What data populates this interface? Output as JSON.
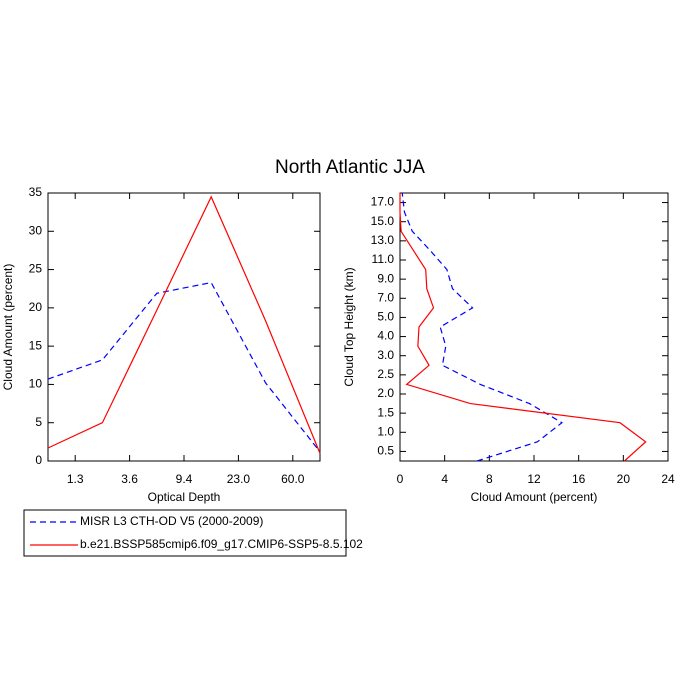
{
  "title": "North Atlantic JJA",
  "chart_data": [
    {
      "type": "line",
      "orientation": "vertical",
      "xlabel": "Optical Depth",
      "ylabel": "Cloud Amount (percent)",
      "x": [
        0,
        1,
        2,
        3,
        4,
        5
      ],
      "xlim": [
        0,
        5
      ],
      "xticks": [
        {
          "value": 0.5,
          "label": "1.3"
        },
        {
          "value": 1.5,
          "label": "3.6"
        },
        {
          "value": 2.5,
          "label": "9.4"
        },
        {
          "value": 3.5,
          "label": "23.0"
        },
        {
          "value": 4.5,
          "label": "60.0"
        }
      ],
      "ylim": [
        0,
        35
      ],
      "yticks": [
        0,
        5,
        10,
        15,
        20,
        25,
        30,
        35
      ],
      "series": [
        {
          "name": "MISR L3 CTH-OD V5 (2000-2009)",
          "color": "#0000ff",
          "dashed": true,
          "values": [
            10.7,
            13.2,
            21.9,
            23.3,
            10.2,
            1.2
          ]
        },
        {
          "name": "b.e21.BSSP585cmip6.f09_g17.CMIP6-SSP5-8.5.102",
          "color": "#ff0000",
          "dashed": false,
          "values": [
            1.7,
            5.0,
            19.7,
            34.5,
            18.3,
            1.0
          ]
        }
      ]
    },
    {
      "type": "line",
      "orientation": "horizontal",
      "xlabel": "Cloud Amount (percent)",
      "ylabel": "Cloud Top Height (km)",
      "xlim": [
        0,
        24
      ],
      "xticks": [
        0,
        4,
        8,
        12,
        16,
        20,
        24
      ],
      "y": [
        0,
        1,
        2,
        3,
        4,
        5,
        6,
        7,
        8,
        9,
        10,
        11,
        12,
        13,
        14
      ],
      "ylim": [
        0,
        14
      ],
      "yticks": [
        {
          "value": 0.5,
          "label": "0.5"
        },
        {
          "value": 1.5,
          "label": "1.0"
        },
        {
          "value": 2.5,
          "label": "1.5"
        },
        {
          "value": 3.5,
          "label": "2.0"
        },
        {
          "value": 4.5,
          "label": "2.5"
        },
        {
          "value": 5.5,
          "label": "3.0"
        },
        {
          "value": 6.5,
          "label": "4.0"
        },
        {
          "value": 7.5,
          "label": "5.0"
        },
        {
          "value": 8.5,
          "label": "7.0"
        },
        {
          "value": 9.5,
          "label": "9.0"
        },
        {
          "value": 10.5,
          "label": "11.0"
        },
        {
          "value": 11.5,
          "label": "13.0"
        },
        {
          "value": 12.5,
          "label": "15.0"
        },
        {
          "value": 13.5,
          "label": "17.0"
        }
      ],
      "series": [
        {
          "color": "#0000ff",
          "dashed": true,
          "values": [
            6.9,
            12.3,
            14.5,
            11.6,
            7.2,
            3.8,
            4.1,
            3.6,
            6.5,
            4.7,
            4.2,
            2.7,
            1.1,
            0.4,
            0.2
          ]
        },
        {
          "color": "#ff0000",
          "dashed": false,
          "values": [
            20.1,
            22.0,
            19.7,
            6.3,
            0.6,
            2.6,
            1.6,
            1.7,
            3.0,
            2.4,
            2.3,
            1.2,
            0.1,
            0,
            0
          ]
        }
      ]
    }
  ]
}
